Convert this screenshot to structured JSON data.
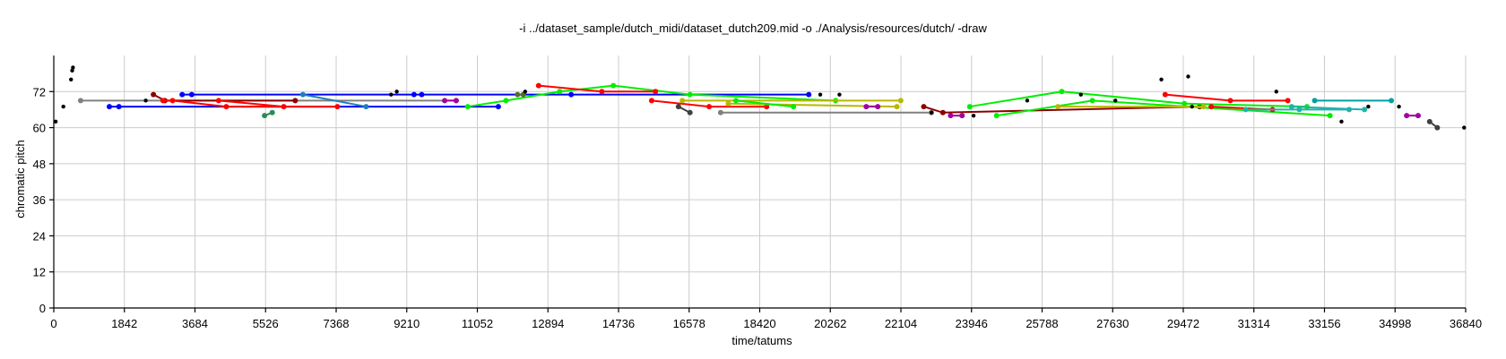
{
  "chart_data": {
    "type": "scatter",
    "title": "-i ../dataset_sample/dutch_midi/dataset_dutch209.mid -o ./Analysis/resources/dutch/ -draw",
    "xlabel": "time/tatums",
    "ylabel": "chromatic pitch",
    "xlim": [
      0,
      36840
    ],
    "ylim": [
      0,
      84
    ],
    "xticks": [
      0,
      1842,
      3684,
      5526,
      7368,
      9210,
      11052,
      12894,
      14736,
      16578,
      18420,
      20262,
      22104,
      23946,
      25788,
      27630,
      29472,
      31314,
      33156,
      34998,
      36840
    ],
    "yticks": [
      0,
      12,
      24,
      36,
      48,
      60,
      72
    ],
    "grid": true,
    "series": [
      {
        "color": "#808080",
        "points": [
          [
            700,
            69
          ],
          [
            10500,
            69
          ]
        ]
      },
      {
        "color": "#0000ff",
        "points": [
          [
            1450,
            67
          ],
          [
            1700,
            67
          ],
          [
            11600,
            67
          ]
        ]
      },
      {
        "color": "#0000ff",
        "points": [
          [
            3350,
            71
          ],
          [
            3600,
            71
          ],
          [
            9400,
            71
          ],
          [
            9600,
            71
          ],
          [
            13500,
            71
          ],
          [
            19700,
            71
          ]
        ]
      },
      {
        "color": "#1f7fbf",
        "points": [
          [
            6500,
            71
          ],
          [
            8150,
            67
          ]
        ]
      },
      {
        "color": "#8b0000",
        "points": [
          [
            2600,
            71
          ],
          [
            2900,
            69
          ],
          [
            6300,
            69
          ]
        ]
      },
      {
        "color": "#ff0000",
        "points": [
          [
            2850,
            69
          ],
          [
            3100,
            69
          ],
          [
            4500,
            67
          ],
          [
            7400,
            67
          ]
        ]
      },
      {
        "color": "#ff0000",
        "points": [
          [
            4300,
            69
          ],
          [
            6000,
            67
          ]
        ]
      },
      {
        "color": "#2e8b57",
        "points": [
          [
            5500,
            64
          ],
          [
            5700,
            65
          ]
        ]
      },
      {
        "color": "#a000a0",
        "points": [
          [
            10200,
            69
          ],
          [
            10500,
            69
          ]
        ]
      },
      {
        "color": "#00ee00",
        "points": [
          [
            10800,
            67
          ],
          [
            11800,
            69
          ],
          [
            13200,
            72
          ],
          [
            14600,
            74
          ],
          [
            16600,
            71
          ],
          [
            20400,
            69
          ]
        ]
      },
      {
        "color": "#ff0000",
        "points": [
          [
            12650,
            74
          ],
          [
            14300,
            72
          ],
          [
            15700,
            72
          ]
        ]
      },
      {
        "color": "#ff0000",
        "points": [
          [
            15600,
            69
          ],
          [
            17100,
            67
          ],
          [
            18600,
            67
          ]
        ]
      },
      {
        "color": "#556b2f",
        "points": [
          [
            12100,
            71
          ],
          [
            12250,
            71
          ]
        ]
      },
      {
        "color": "#b8b800",
        "points": [
          [
            16400,
            69
          ],
          [
            22100,
            69
          ]
        ]
      },
      {
        "color": "#b8b800",
        "points": [
          [
            17600,
            68
          ],
          [
            22000,
            67
          ]
        ]
      },
      {
        "color": "#00ee00",
        "points": [
          [
            17800,
            69
          ],
          [
            19300,
            67
          ]
        ]
      },
      {
        "color": "#404040",
        "points": [
          [
            16300,
            67
          ],
          [
            16600,
            65
          ]
        ]
      },
      {
        "color": "#808080",
        "points": [
          [
            17400,
            65
          ],
          [
            22900,
            65
          ]
        ]
      },
      {
        "color": "#a000a0",
        "points": [
          [
            21200,
            67
          ],
          [
            21500,
            67
          ]
        ]
      },
      {
        "color": "#8b0000",
        "points": [
          [
            22700,
            67
          ],
          [
            23200,
            65
          ],
          [
            29900,
            67
          ]
        ]
      },
      {
        "color": "#a000a0",
        "points": [
          [
            23400,
            64
          ],
          [
            23700,
            64
          ]
        ]
      },
      {
        "color": "#00ee00",
        "points": [
          [
            23900,
            67
          ],
          [
            26300,
            72
          ],
          [
            29500,
            68
          ],
          [
            32700,
            67
          ]
        ]
      },
      {
        "color": "#00ee00",
        "points": [
          [
            24600,
            64
          ],
          [
            27100,
            69
          ],
          [
            33300,
            64
          ]
        ]
      },
      {
        "color": "#b8b800",
        "points": [
          [
            26200,
            67
          ],
          [
            30000,
            67
          ]
        ]
      },
      {
        "color": "#ff0000",
        "points": [
          [
            29000,
            71
          ],
          [
            30700,
            69
          ],
          [
            32200,
            69
          ]
        ]
      },
      {
        "color": "#ff0000",
        "points": [
          [
            30200,
            67
          ],
          [
            31800,
            66
          ]
        ]
      },
      {
        "color": "#20b2aa",
        "points": [
          [
            31100,
            66
          ],
          [
            32500,
            66
          ],
          [
            33800,
            66
          ]
        ]
      },
      {
        "color": "#00a0a0",
        "points": [
          [
            32900,
            69
          ],
          [
            34900,
            69
          ]
        ]
      },
      {
        "color": "#20b2aa",
        "points": [
          [
            32300,
            67
          ],
          [
            34200,
            66
          ]
        ]
      },
      {
        "color": "#a000a0",
        "points": [
          [
            35300,
            64
          ],
          [
            35600,
            64
          ]
        ]
      },
      {
        "color": "#404040",
        "points": [
          [
            35900,
            62
          ],
          [
            36100,
            60
          ]
        ]
      },
      {
        "color": "#000000",
        "points": [
          [
            50,
            62
          ],
          [
            250,
            67
          ],
          [
            450,
            76
          ],
          [
            480,
            79
          ],
          [
            500,
            80
          ],
          [
            2400,
            69
          ],
          [
            8800,
            71
          ],
          [
            8950,
            72
          ],
          [
            12300,
            72
          ],
          [
            20000,
            71
          ],
          [
            20500,
            71
          ],
          [
            22900,
            65
          ],
          [
            24000,
            64
          ],
          [
            25400,
            69
          ],
          [
            26800,
            71
          ],
          [
            27700,
            69
          ],
          [
            28900,
            76
          ],
          [
            29600,
            77
          ],
          [
            29700,
            67
          ],
          [
            31900,
            72
          ],
          [
            33600,
            62
          ],
          [
            34300,
            67
          ],
          [
            35100,
            67
          ],
          [
            36800,
            60
          ]
        ]
      }
    ]
  }
}
